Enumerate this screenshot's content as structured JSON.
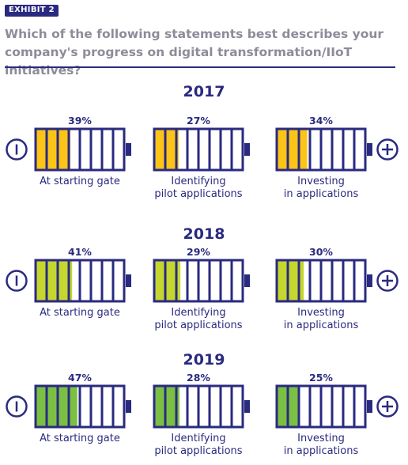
{
  "exhibit_label": "EXHIBIT 2",
  "question": "Which of the following statements best describes your company's progress on digital transformation/IIoT initiatives?",
  "colors": {
    "navy": "#2a2a80",
    "question_gray": "#8c8c9a",
    "year_2017_fill": "#fcc417",
    "year_2018_fill": "#c5d72e",
    "year_2019_fill": "#7bc043"
  },
  "scale_icons": {
    "low": "minus-circle-icon",
    "high": "plus-circle-icon"
  },
  "chart_data": {
    "type": "bar",
    "unit": "%",
    "categories": [
      "At starting gate",
      "Identifying pilot applications",
      "Investing in applications"
    ],
    "category_display": [
      [
        "At starting gate"
      ],
      [
        "Identifying",
        "pilot applications"
      ],
      [
        "Investing",
        "in applications"
      ]
    ],
    "segments_per_battery": 8,
    "series": [
      {
        "name": "2017",
        "values": [
          39,
          27,
          34
        ],
        "color": "#fcc417"
      },
      {
        "name": "2018",
        "values": [
          41,
          29,
          30
        ],
        "color": "#c5d72e"
      },
      {
        "name": "2019",
        "values": [
          47,
          28,
          25
        ],
        "color": "#7bc043"
      }
    ]
  }
}
